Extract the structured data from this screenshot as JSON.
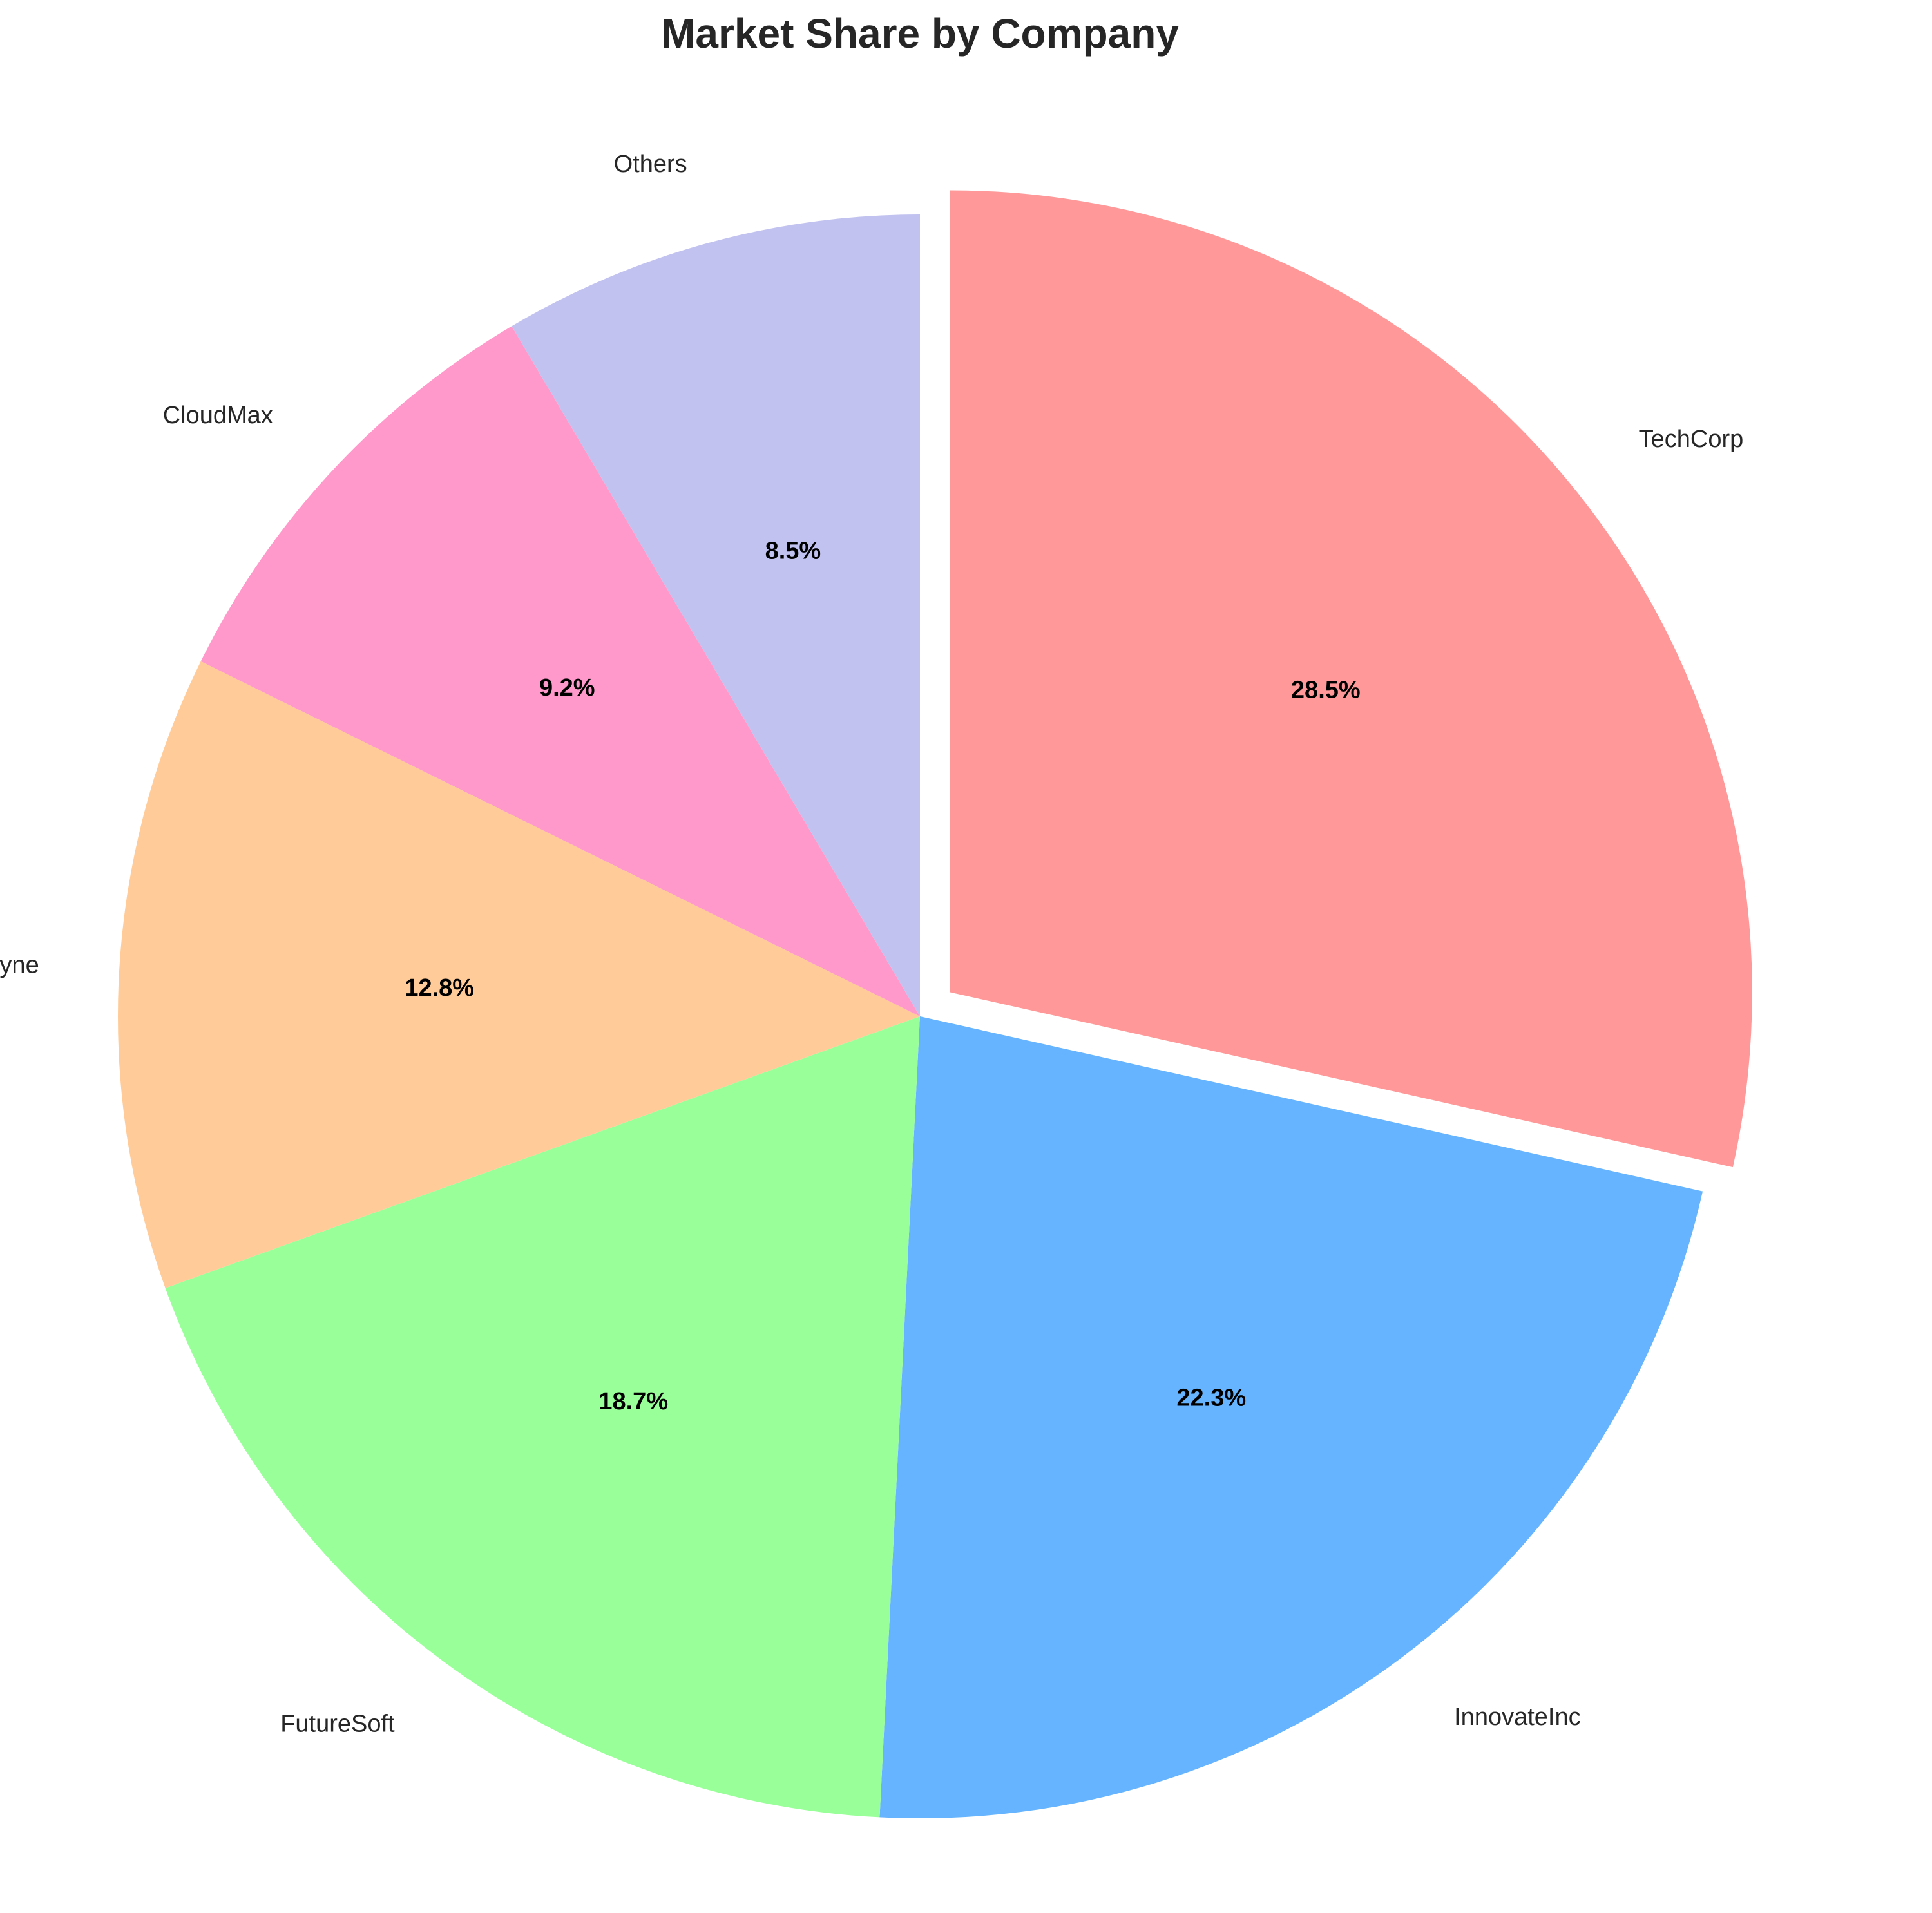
{
  "chart_data": {
    "type": "pie",
    "title": "Market Share by Company",
    "start_angle_deg": 90,
    "direction": "clockwise",
    "slices": [
      {
        "label": "TechCorp",
        "value": 28.5,
        "value_label": "28.5%",
        "color": "#FF9999",
        "exploded": true
      },
      {
        "label": "InnovateInc",
        "value": 22.3,
        "value_label": "22.3%",
        "color": "#66B3FF",
        "exploded": false
      },
      {
        "label": "FutureSoft",
        "value": 18.7,
        "value_label": "18.7%",
        "color": "#99FF99",
        "exploded": false
      },
      {
        "label": "DataDyne",
        "value": 12.8,
        "value_label": "12.8%",
        "color": "#FFCC99",
        "exploded": false
      },
      {
        "label": "CloudMax",
        "value": 9.2,
        "value_label": "9.2%",
        "color": "#FF99CC",
        "exploded": false
      },
      {
        "label": "Others",
        "value": 8.5,
        "value_label": "8.5%",
        "color": "#C2C2F0",
        "exploded": false
      }
    ]
  }
}
